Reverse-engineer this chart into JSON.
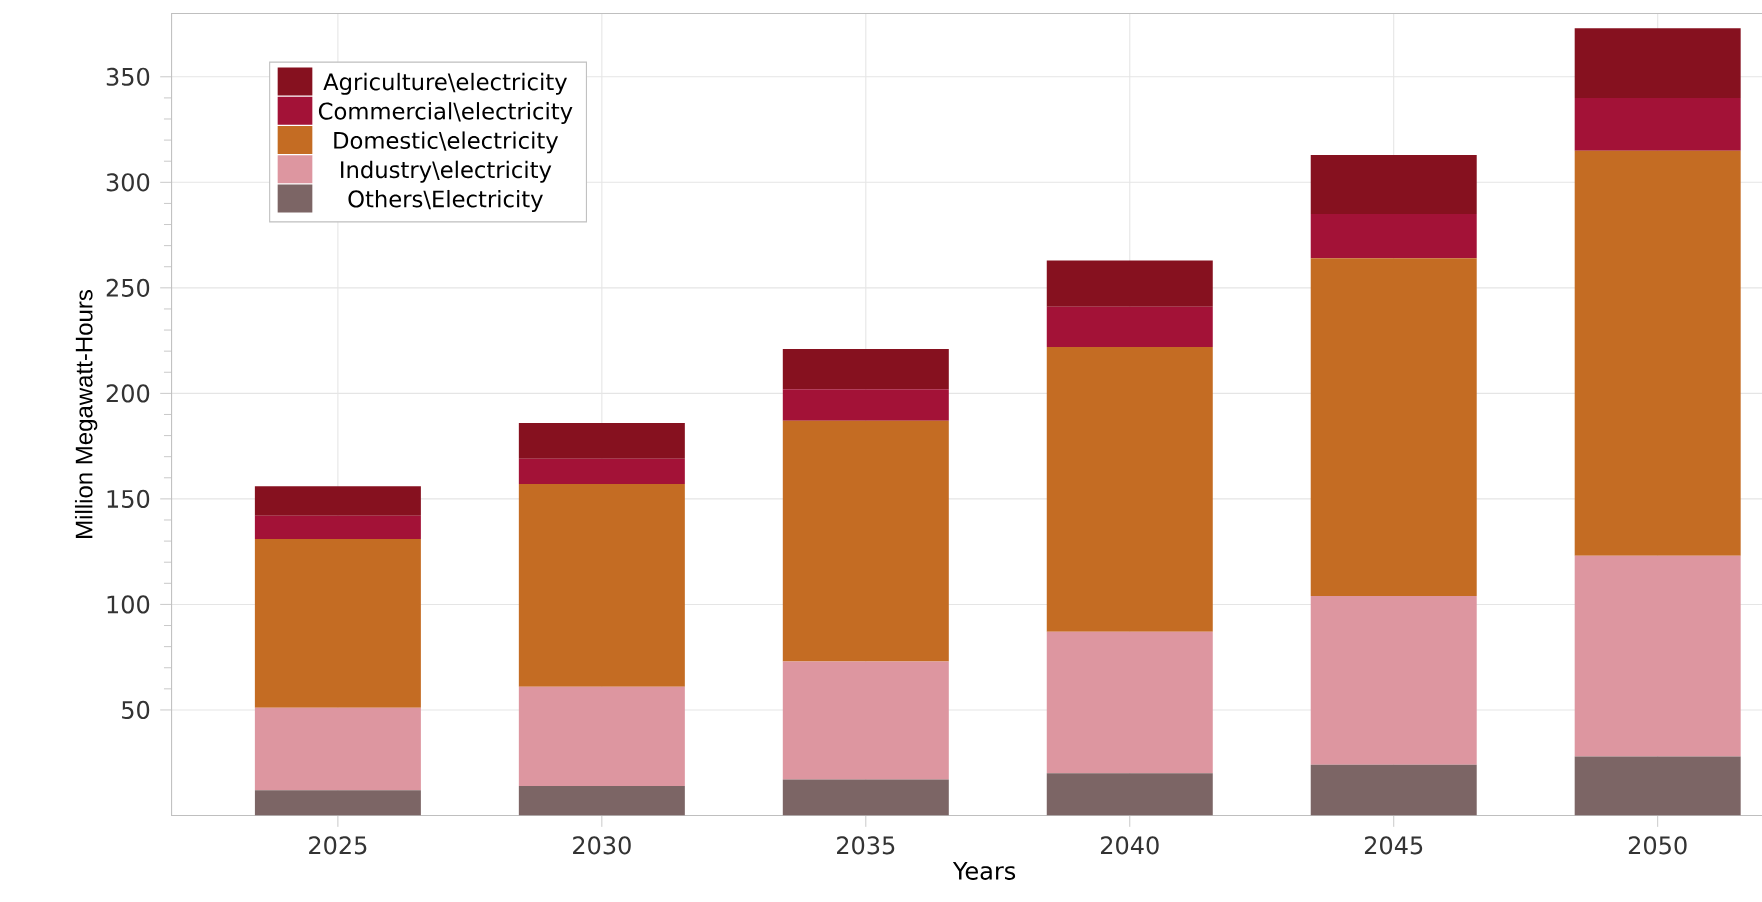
{
  "chart_data": {
    "type": "bar",
    "stacked": true,
    "xlabel": "Years",
    "ylabel": "Million Megawatt-Hours",
    "categories": [
      "2025",
      "2030",
      "2035",
      "2040",
      "2045",
      "2050"
    ],
    "series": [
      {
        "name": "Others\\Electricity",
        "color": "#7c6565",
        "values": [
          12,
          14,
          17,
          20,
          24,
          28
        ]
      },
      {
        "name": "Industry\\electricity",
        "color": "#dd96a0",
        "values": [
          39,
          47,
          56,
          67,
          80,
          95
        ]
      },
      {
        "name": "Domestic\\electricity",
        "color": "#c46c23",
        "values": [
          80,
          96,
          114,
          135,
          160,
          192
        ]
      },
      {
        "name": "Commercial\\electricity",
        "color": "#a31237",
        "values": [
          11,
          12,
          15,
          19,
          21,
          25
        ]
      },
      {
        "name": "Agriculture\\electricity",
        "color": "#86111f",
        "values": [
          14,
          17,
          19,
          22,
          28,
          33
        ]
      }
    ],
    "ylim": [
      0,
      380
    ],
    "yticks": [
      50,
      100,
      150,
      200,
      250,
      300,
      350
    ],
    "grid": true,
    "legend": "top left"
  }
}
